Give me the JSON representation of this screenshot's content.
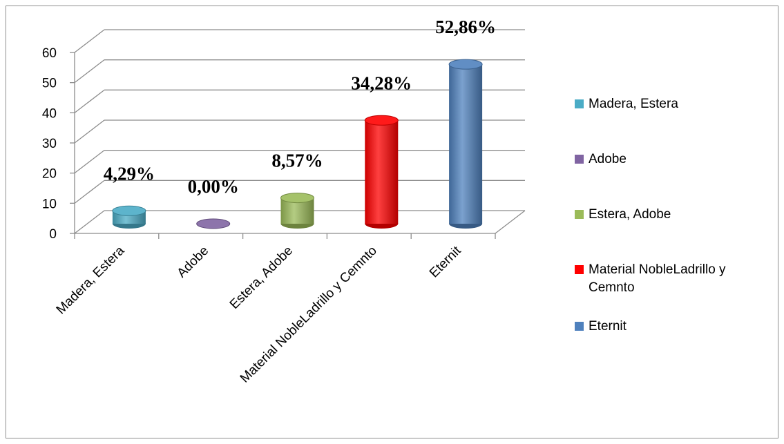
{
  "chart_data": {
    "type": "bar",
    "categories": [
      "Madera, Estera",
      "Adobe",
      "Estera, Adobe",
      "Material NobleLadrillo y Cemnto",
      "Eternit"
    ],
    "values": [
      4.29,
      0.0,
      8.57,
      34.28,
      52.86
    ],
    "data_labels": [
      "4,29%",
      "0,00%",
      "8,57%",
      "34,28%",
      "52,86%"
    ],
    "colors": [
      "#4BACC6",
      "#8064A2",
      "#9BBB59",
      "#FF0000",
      "#4F81BD"
    ],
    "y_ticks": [
      "0",
      "10",
      "20",
      "30",
      "40",
      "50",
      "60"
    ],
    "ylim": [
      0,
      60
    ],
    "grid": true,
    "legend_position": "right",
    "legend": [
      "Madera, Estera",
      "Adobe",
      "Estera, Adobe",
      "Material NobleLadrillo y Cemnto",
      "Eternit"
    ]
  }
}
